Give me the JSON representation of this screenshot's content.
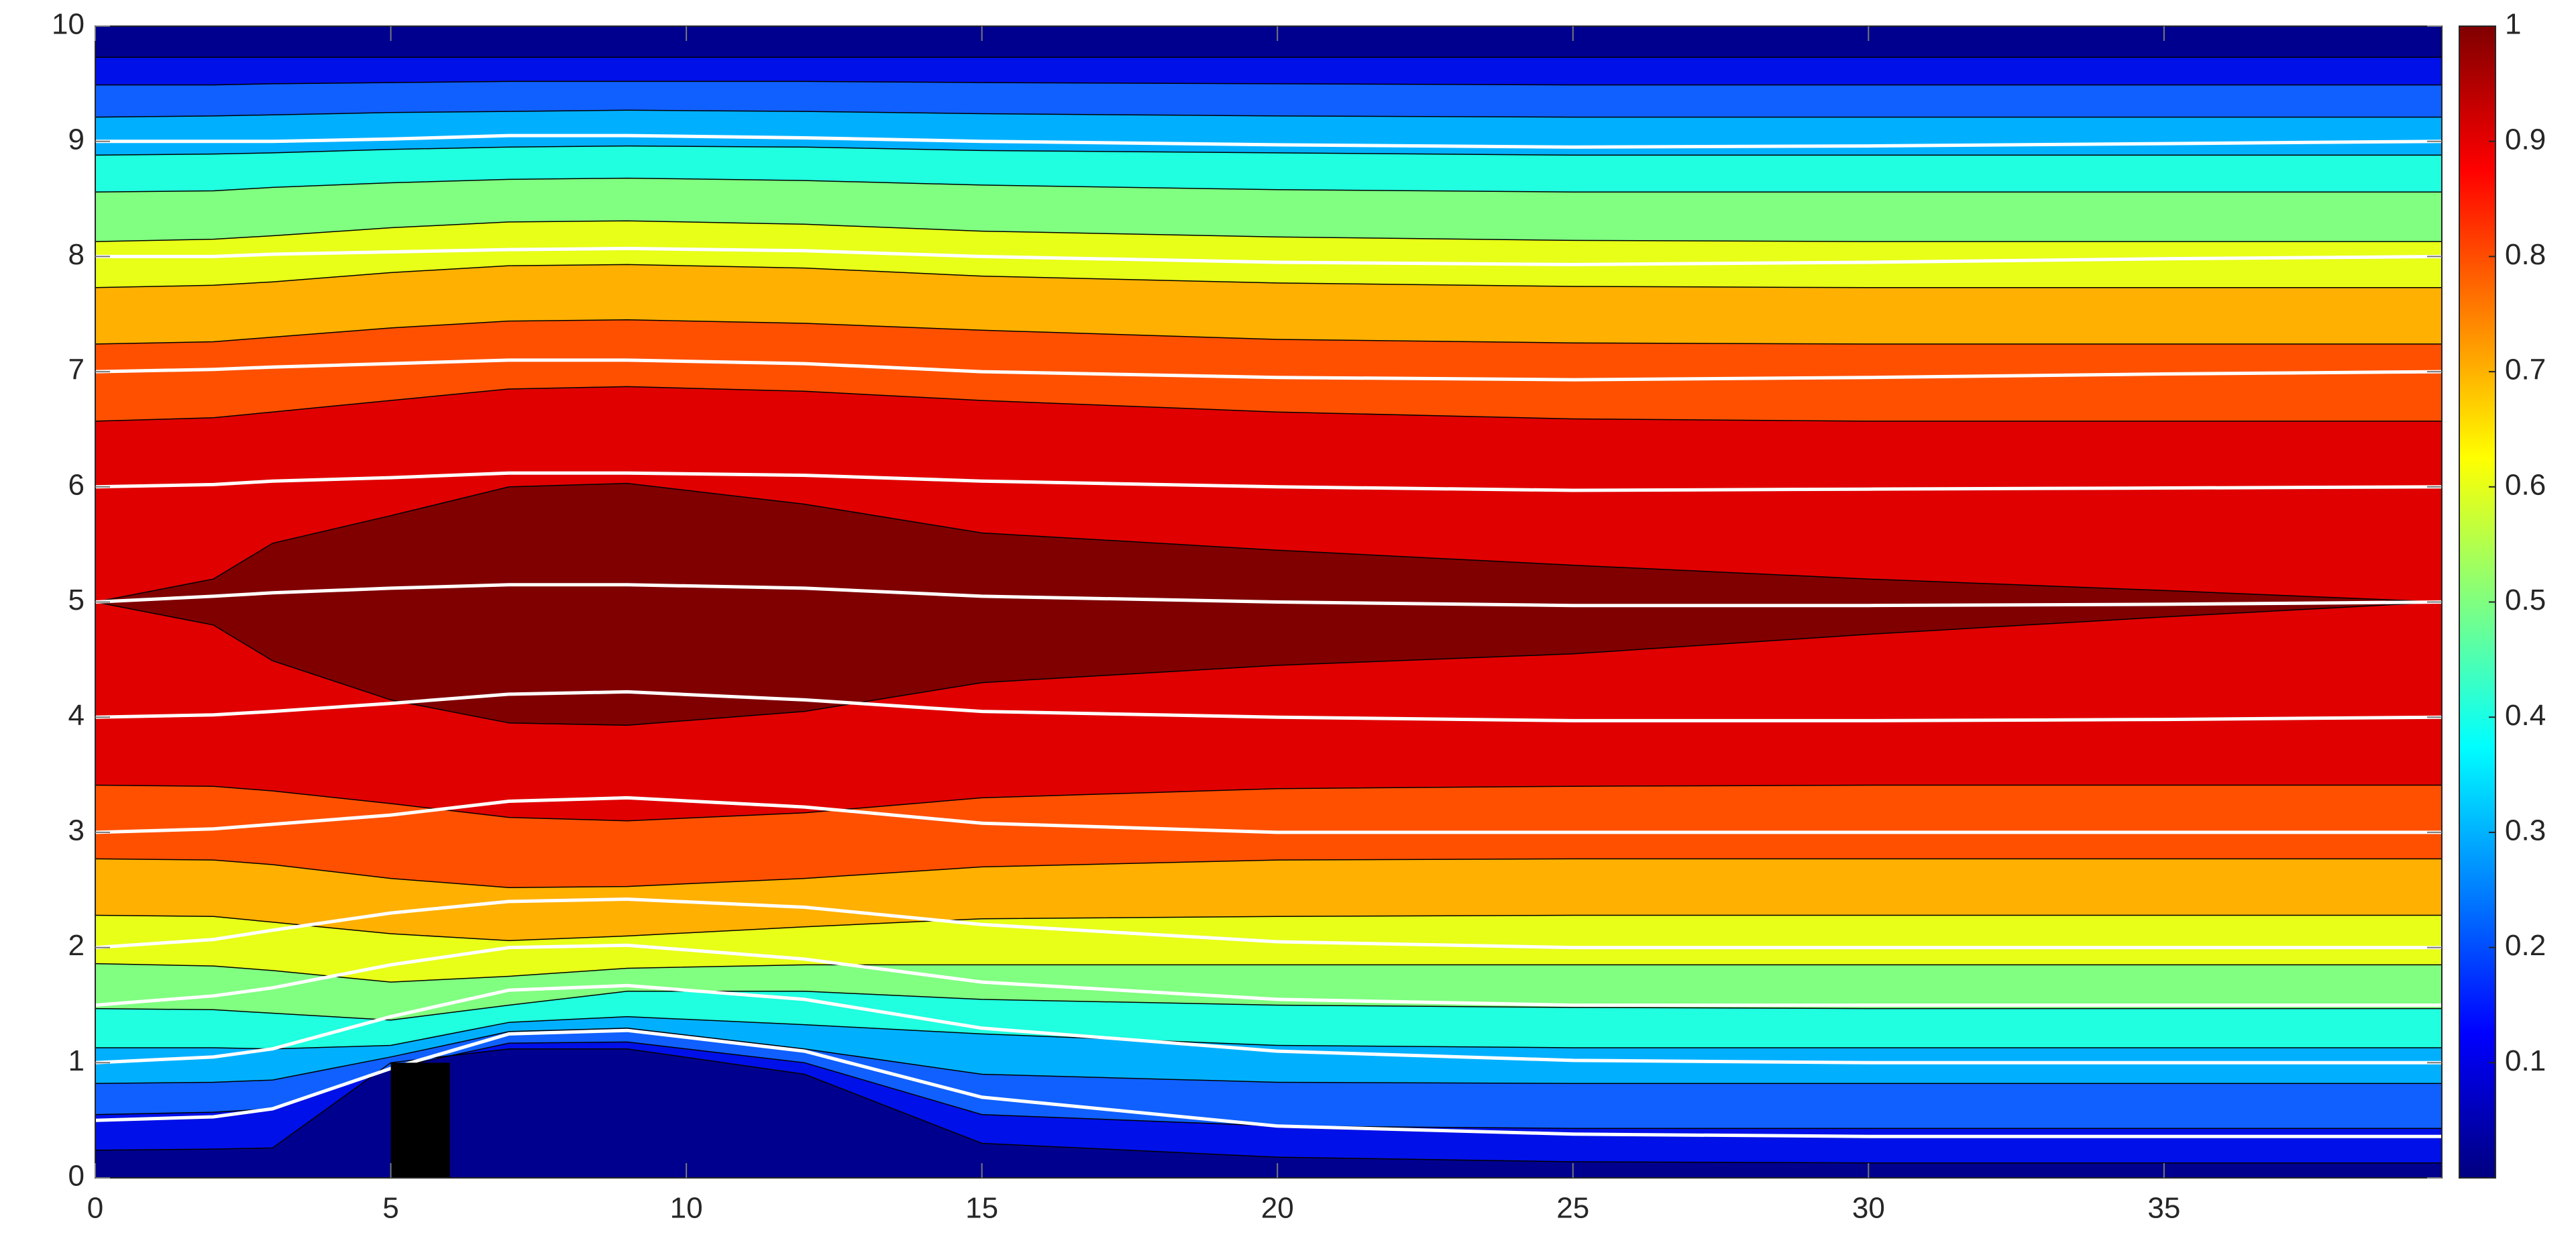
{
  "chart_data": {
    "type": "contour",
    "x": [
      0,
      2,
      3,
      5,
      7,
      9,
      12,
      15,
      20,
      25,
      30,
      35,
      39.7
    ],
    "xlim": [
      0,
      39.7
    ],
    "ylim": [
      0,
      10
    ],
    "xticks": [
      0,
      5,
      10,
      15,
      20,
      25,
      30,
      35
    ],
    "yticks": [
      0,
      1,
      2,
      3,
      4,
      5,
      6,
      7,
      8,
      9,
      10
    ],
    "contour_lines": [
      {
        "y": [
          0.24,
          0.25,
          0.26,
          1.0,
          1.12,
          1.12,
          0.9,
          0.3,
          0.18,
          0.14,
          0.13,
          0.13,
          0.13
        ]
      },
      {
        "y": [
          0.55,
          0.57,
          0.6,
          0.95,
          1.17,
          1.18,
          1.0,
          0.55,
          0.45,
          0.43,
          0.43,
          0.43,
          0.43
        ]
      },
      {
        "y": [
          0.82,
          0.83,
          0.85,
          1.05,
          1.27,
          1.3,
          1.12,
          0.9,
          0.83,
          0.82,
          0.82,
          0.82,
          0.82
        ]
      },
      {
        "y": [
          1.13,
          1.13,
          1.12,
          1.15,
          1.35,
          1.4,
          1.33,
          1.25,
          1.15,
          1.13,
          1.13,
          1.13,
          1.13
        ]
      },
      {
        "y": [
          1.47,
          1.46,
          1.43,
          1.37,
          1.5,
          1.62,
          1.62,
          1.55,
          1.5,
          1.48,
          1.47,
          1.47,
          1.47
        ]
      },
      {
        "y": [
          1.86,
          1.84,
          1.8,
          1.7,
          1.75,
          1.82,
          1.85,
          1.85,
          1.85,
          1.85,
          1.85,
          1.85,
          1.85
        ]
      },
      {
        "y": [
          2.28,
          2.27,
          2.22,
          2.12,
          2.06,
          2.1,
          2.18,
          2.25,
          2.27,
          2.28,
          2.28,
          2.28,
          2.28
        ]
      },
      {
        "y": [
          2.77,
          2.76,
          2.72,
          2.6,
          2.52,
          2.53,
          2.6,
          2.7,
          2.76,
          2.77,
          2.77,
          2.77,
          2.77
        ]
      },
      {
        "y": [
          3.41,
          3.4,
          3.36,
          3.25,
          3.13,
          3.1,
          3.17,
          3.3,
          3.38,
          3.4,
          3.41,
          3.41,
          3.41
        ]
      },
      {
        "y": [
          6.57,
          6.6,
          6.65,
          6.75,
          6.85,
          6.87,
          6.83,
          6.75,
          6.65,
          6.59,
          6.57,
          6.57,
          6.57
        ]
      },
      {
        "y": [
          7.24,
          7.26,
          7.3,
          7.38,
          7.44,
          7.45,
          7.42,
          7.36,
          7.28,
          7.25,
          7.24,
          7.24,
          7.24
        ]
      },
      {
        "y": [
          7.73,
          7.75,
          7.78,
          7.86,
          7.92,
          7.93,
          7.9,
          7.83,
          7.77,
          7.74,
          7.73,
          7.73,
          7.73
        ]
      },
      {
        "y": [
          8.13,
          8.15,
          8.18,
          8.25,
          8.3,
          8.31,
          8.28,
          8.22,
          8.17,
          8.14,
          8.13,
          8.13,
          8.13
        ]
      },
      {
        "y": [
          8.56,
          8.57,
          8.6,
          8.64,
          8.67,
          8.68,
          8.66,
          8.62,
          8.58,
          8.56,
          8.56,
          8.56,
          8.56
        ]
      },
      {
        "y": [
          8.88,
          8.89,
          8.9,
          8.93,
          8.95,
          8.96,
          8.95,
          8.92,
          8.9,
          8.88,
          8.88,
          8.88,
          8.88
        ]
      },
      {
        "y": [
          9.21,
          9.22,
          9.23,
          9.25,
          9.26,
          9.27,
          9.26,
          9.24,
          9.22,
          9.21,
          9.21,
          9.21,
          9.21
        ]
      },
      {
        "y": [
          9.49,
          9.49,
          9.5,
          9.51,
          9.52,
          9.52,
          9.52,
          9.51,
          9.5,
          9.49,
          9.49,
          9.49,
          9.49
        ]
      },
      {
        "y": [
          9.73,
          9.73,
          9.73,
          9.73,
          9.73,
          9.73,
          9.73,
          9.73,
          9.73,
          9.73,
          9.73,
          9.73,
          9.73
        ]
      }
    ],
    "band_colors": [
      "#00008f",
      "#0010e8",
      "#1060ff",
      "#00b0ff",
      "#20ffe0",
      "#80ff80",
      "#e8ff18",
      "#ffb000",
      "#ff5000",
      "#e00000",
      "#ff5000",
      "#ffb000",
      "#e8ff18",
      "#80ff80",
      "#20ffe0",
      "#00b0ff",
      "#1060ff",
      "#0010e8",
      "#00008f"
    ],
    "core": {
      "color": "#800000",
      "lower": [
        5,
        4.8,
        4.49,
        4.15,
        3.95,
        3.93,
        4.05,
        4.3,
        4.45,
        4.55,
        4.72,
        4.87,
        5
      ],
      "upper": [
        5,
        5.2,
        5.51,
        5.75,
        6.0,
        6.03,
        5.85,
        5.6,
        5.45,
        5.32,
        5.2,
        5.1,
        5
      ]
    },
    "streamlines": [
      {
        "y": [
          0.5,
          0.53,
          0.6,
          0.95,
          1.25,
          1.28,
          1.1,
          0.7,
          0.45,
          0.38,
          0.36,
          0.36,
          0.36
        ]
      },
      {
        "y": [
          1,
          1.05,
          1.12,
          1.4,
          1.63,
          1.67,
          1.55,
          1.3,
          1.1,
          1.02,
          1,
          1,
          1
        ]
      },
      {
        "y": [
          1.5,
          1.58,
          1.65,
          1.85,
          2.0,
          2.02,
          1.9,
          1.7,
          1.55,
          1.5,
          1.5,
          1.5,
          1.5
        ]
      },
      {
        "y": [
          2,
          2.07,
          2.15,
          2.3,
          2.4,
          2.42,
          2.35,
          2.2,
          2.05,
          2,
          2,
          2,
          2
        ]
      },
      {
        "y": [
          3,
          3.03,
          3.07,
          3.15,
          3.27,
          3.3,
          3.22,
          3.08,
          3.0,
          3,
          3,
          3,
          3
        ]
      },
      {
        "y": [
          4,
          4.02,
          4.05,
          4.12,
          4.2,
          4.22,
          4.15,
          4.05,
          4,
          3.97,
          3.97,
          3.98,
          4
        ]
      },
      {
        "y": [
          5,
          5.05,
          5.08,
          5.12,
          5.15,
          5.15,
          5.12,
          5.05,
          5,
          4.97,
          4.97,
          4.98,
          5
        ]
      },
      {
        "y": [
          6,
          6.02,
          6.05,
          6.08,
          6.12,
          6.12,
          6.1,
          6.05,
          6,
          5.97,
          5.98,
          5.99,
          6
        ]
      },
      {
        "y": [
          7,
          7.02,
          7.04,
          7.07,
          7.1,
          7.1,
          7.07,
          7.0,
          6.95,
          6.93,
          6.95,
          6.98,
          7
        ]
      },
      {
        "y": [
          8,
          8,
          8.02,
          8.04,
          8.06,
          8.07,
          8.05,
          8.0,
          7.95,
          7.93,
          7.95,
          7.98,
          8
        ]
      },
      {
        "y": [
          9,
          9,
          9,
          9.02,
          9.05,
          9.05,
          9.03,
          9,
          8.97,
          8.95,
          8.96,
          8.98,
          9
        ]
      }
    ],
    "streamline_color": "#ffffff",
    "obstacle": {
      "x": [
        5,
        6
      ],
      "y": [
        0,
        1
      ],
      "color": "#000000"
    },
    "colorbar": {
      "colormap": "jet",
      "clim": [
        0,
        1
      ],
      "ticks": [
        0.1,
        0.2,
        0.3,
        0.4,
        0.5,
        0.6,
        0.7,
        0.8,
        0.9,
        1
      ]
    }
  }
}
